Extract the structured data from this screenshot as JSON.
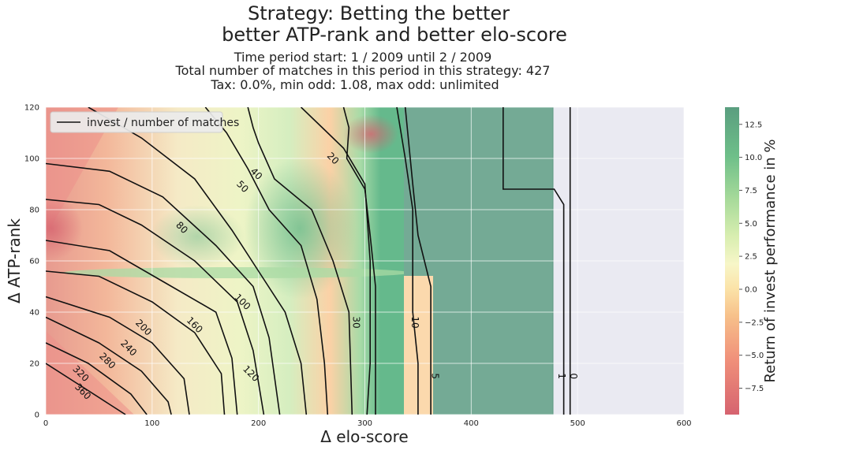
{
  "chart_data": {
    "type": "heatmap",
    "title": "Strategy: Betting the better",
    "title_line2": "better ATP-rank and better elo-score",
    "subtitle_lines": [
      "Time period start: 1 / 2009 until 2 / 2009",
      "Total number of matches in this period in this strategy: 427",
      "Tax: 0.0%, min odd: 1.08, max odd: unlimited"
    ],
    "xlabel": "Δ elo-score",
    "ylabel": "Δ ATP-rank",
    "xlim": [
      0,
      600
    ],
    "ylim": [
      0,
      120
    ],
    "xticks": [
      "0",
      "100",
      "200",
      "300",
      "400",
      "500",
      "600"
    ],
    "yticks": [
      "0",
      "20",
      "40",
      "60",
      "80",
      "100",
      "120"
    ],
    "grid": true,
    "legend": {
      "label": "invest / number of matches",
      "position": "top-left"
    },
    "colorbar": {
      "label": "Return of invest performance in %",
      "range": [
        -9.5,
        13.8
      ],
      "ticks": [
        "−7.5",
        "−5.0",
        "−2.5",
        "0.0",
        "2.5",
        "5.0",
        "7.5",
        "10.0",
        "12.5"
      ],
      "tick_values": [
        -7.5,
        -5.0,
        -2.5,
        0.0,
        2.5,
        5.0,
        7.5,
        10.0,
        12.5
      ],
      "colormap": "RdYlGn"
    },
    "contours": [
      {
        "level": "360",
        "points": [
          [
            0,
            20
          ],
          [
            30,
            12
          ],
          [
            60,
            4
          ],
          [
            75,
            0
          ]
        ],
        "label_at": [
          35,
          9
        ]
      },
      {
        "level": "320",
        "points": [
          [
            0,
            28
          ],
          [
            40,
            20
          ],
          [
            80,
            8
          ],
          [
            95,
            0
          ]
        ],
        "label_at": [
          33,
          16
        ]
      },
      {
        "level": "280",
        "points": [
          [
            0,
            38
          ],
          [
            50,
            28
          ],
          [
            90,
            17
          ],
          [
            115,
            5
          ],
          [
            118,
            0
          ]
        ],
        "label_at": [
          58,
          21
        ]
      },
      {
        "level": "240",
        "points": [
          [
            0,
            46
          ],
          [
            60,
            38
          ],
          [
            100,
            28
          ],
          [
            130,
            14
          ],
          [
            135,
            0
          ]
        ],
        "label_at": [
          78,
          26
        ]
      },
      {
        "level": "200",
        "points": [
          [
            0,
            56
          ],
          [
            50,
            54
          ],
          [
            100,
            44
          ],
          [
            140,
            32
          ],
          [
            165,
            16
          ],
          [
            168,
            0
          ]
        ],
        "label_at": [
          92,
          34
        ]
      },
      {
        "level": "160",
        "points": [
          [
            0,
            68
          ],
          [
            60,
            64
          ],
          [
            110,
            52
          ],
          [
            160,
            40
          ],
          [
            175,
            22
          ],
          [
            180,
            0
          ]
        ],
        "label_at": [
          140,
          35
        ]
      },
      {
        "level": "120",
        "points": [
          [
            0,
            84
          ],
          [
            50,
            82
          ],
          [
            90,
            74
          ],
          [
            140,
            60
          ],
          [
            180,
            44
          ],
          [
            195,
            25
          ],
          [
            205,
            0
          ]
        ],
        "label_at": [
          193,
          16
        ]
      },
      {
        "level": "100",
        "points": [
          [
            0,
            98
          ],
          [
            60,
            95
          ],
          [
            110,
            85
          ],
          [
            160,
            66
          ],
          [
            195,
            50
          ],
          [
            210,
            30
          ],
          [
            220,
            0
          ]
        ],
        "label_at": [
          185,
          44
        ]
      },
      {
        "level": "80",
        "points": [
          [
            40,
            120
          ],
          [
            90,
            108
          ],
          [
            140,
            92
          ],
          [
            175,
            72
          ],
          [
            200,
            56
          ],
          [
            225,
            40
          ],
          [
            240,
            20
          ],
          [
            245,
            0
          ]
        ],
        "label_at": [
          128,
          73
        ]
      },
      {
        "level": "50",
        "points": [
          [
            150,
            120
          ],
          [
            170,
            110
          ],
          [
            190,
            96
          ],
          [
            210,
            80
          ],
          [
            240,
            66
          ],
          [
            255,
            45
          ],
          [
            262,
            20
          ],
          [
            265,
            0
          ]
        ],
        "label_at": [
          185,
          89
        ]
      },
      {
        "level": "40",
        "points": [
          [
            190,
            120
          ],
          [
            195,
            112
          ],
          [
            200,
            106
          ],
          [
            215,
            92
          ],
          [
            250,
            80
          ],
          [
            270,
            60
          ],
          [
            285,
            40
          ],
          [
            288,
            0
          ]
        ],
        "label_at": [
          198,
          94
        ]
      },
      {
        "level": "30",
        "points": [
          [
            240,
            120
          ],
          [
            260,
            112
          ],
          [
            280,
            104
          ],
          [
            300,
            90
          ],
          [
            305,
            60
          ],
          [
            305,
            20
          ],
          [
            302,
            0
          ]
        ],
        "label_at": [
          292,
          36
        ]
      },
      {
        "level": "20",
        "points": [
          [
            280,
            120
          ],
          [
            285,
            112
          ],
          [
            283,
            100
          ],
          [
            300,
            88
          ],
          [
            305,
            70
          ],
          [
            310,
            50
          ],
          [
            310,
            20
          ],
          [
            310,
            0
          ]
        ],
        "label_at": [
          270,
          100
        ]
      },
      {
        "level": "10",
        "points": [
          [
            330,
            120
          ],
          [
            338,
            100
          ],
          [
            345,
            80
          ],
          [
            345,
            60
          ],
          [
            345,
            40
          ],
          [
            350,
            20
          ],
          [
            350,
            0
          ]
        ],
        "label_at": [
          347,
          36
        ]
      },
      {
        "level": "5",
        "points": [
          [
            338,
            120
          ],
          [
            345,
            90
          ],
          [
            350,
            70
          ],
          [
            362,
            50
          ],
          [
            362,
            20
          ],
          [
            362,
            0
          ]
        ],
        "label_at": [
          366,
          15
        ]
      },
      {
        "level": "1",
        "points": [
          [
            430,
            120
          ],
          [
            430,
            88
          ],
          [
            478,
            88
          ],
          [
            487,
            82
          ],
          [
            487,
            0
          ]
        ],
        "label_at": [
          485,
          15
        ]
      },
      {
        "level": "0",
        "points": [
          [
            493,
            120
          ],
          [
            493,
            0
          ]
        ],
        "label_at": [
          496,
          15
        ]
      }
    ]
  }
}
